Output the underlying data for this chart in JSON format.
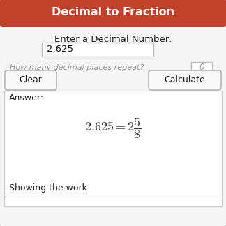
{
  "title": "Decimal to Fraction",
  "title_bg": "#c0422a",
  "title_color": "#ffffff",
  "bg_color": "#e9e9e9",
  "outer_bg": "#f5f5f5",
  "answer_bg": "#ffffff",
  "answer_border": "#cccccc",
  "label_decimal": "Enter a Decimal Number:",
  "input_value": "2.625",
  "repeat_label": "How many decimal places repeat?",
  "repeat_value": "0",
  "btn_clear": "Clear",
  "btn_calculate": "Calculate",
  "answer_label": "Answer:",
  "showing": "Showing the work",
  "input_box_color": "#ffffff",
  "input_border": "#bbbbbb",
  "btn_bg": "#f8f8f8",
  "btn_border": "#aaaaaa",
  "outer_border": "#cccccc",
  "equation_color": "#333333",
  "repeat_text_color": "#999999",
  "label_color": "#222222"
}
